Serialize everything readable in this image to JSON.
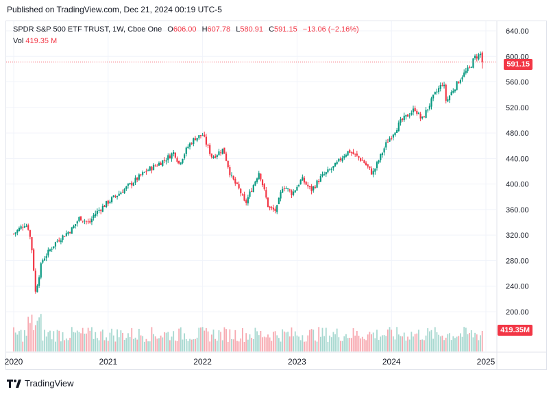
{
  "header": {
    "published_text": "Published on TradingView.com, Dec 21, 2024 00:19 UTC-5"
  },
  "legend": {
    "symbol": "SPDR S&P 500 ETF TRUST, 1W, Cboe One",
    "o_label": "O",
    "o_value": "606.00",
    "h_label": "H",
    "h_value": "607.78",
    "l_label": "L",
    "l_value": "580.91",
    "c_label": "C",
    "c_value": "591.15",
    "change": "−13.06 (−2.16%)",
    "vol_label": "Vol",
    "vol_value": "419.35 M"
  },
  "price_tag": "591.15",
  "volume_tag": "419.35M",
  "brand": {
    "name": "TradingView",
    "icon": "tradingview-logo-icon"
  },
  "colors": {
    "up": "#089981",
    "down": "#f23645",
    "up_vol": "#a7d8d0",
    "down_vol": "#f7a9b0",
    "grid": "#f0f3fa",
    "axis_text": "#131722"
  },
  "chart_data": {
    "type": "candlestick",
    "interval": "1W",
    "symbol": "SPY",
    "x_ticks": [
      "2020",
      "2021",
      "2022",
      "2023",
      "2024",
      "2025"
    ],
    "y_ticks": [
      640,
      600,
      560,
      520,
      480,
      440,
      400,
      360,
      320,
      280,
      240,
      200
    ],
    "ylim": [
      180,
      655
    ],
    "last_close": 591.15,
    "last_volume": "419.35M",
    "grid": true,
    "anchors": [
      [
        2020.0,
        322
      ],
      [
        2020.12,
        338
      ],
      [
        2020.16,
        330
      ],
      [
        2020.2,
        290
      ],
      [
        2020.23,
        230
      ],
      [
        2020.3,
        280
      ],
      [
        2020.45,
        310
      ],
      [
        2020.62,
        330
      ],
      [
        2020.7,
        348
      ],
      [
        2020.8,
        338
      ],
      [
        2020.85,
        352
      ],
      [
        2021.0,
        372
      ],
      [
        2021.2,
        395
      ],
      [
        2021.4,
        420
      ],
      [
        2021.6,
        438
      ],
      [
        2021.7,
        450
      ],
      [
        2021.75,
        432
      ],
      [
        2021.85,
        460
      ],
      [
        2021.92,
        472
      ],
      [
        2022.0,
        477
      ],
      [
        2022.1,
        442
      ],
      [
        2022.22,
        455
      ],
      [
        2022.3,
        412
      ],
      [
        2022.4,
        388
      ],
      [
        2022.45,
        368
      ],
      [
        2022.6,
        420
      ],
      [
        2022.7,
        362
      ],
      [
        2022.78,
        358
      ],
      [
        2022.85,
        398
      ],
      [
        2022.95,
        385
      ],
      [
        2023.05,
        408
      ],
      [
        2023.15,
        390
      ],
      [
        2023.25,
        410
      ],
      [
        2023.4,
        428
      ],
      [
        2023.5,
        446
      ],
      [
        2023.55,
        452
      ],
      [
        2023.7,
        436
      ],
      [
        2023.8,
        416
      ],
      [
        2023.95,
        465
      ],
      [
        2024.1,
        498
      ],
      [
        2024.25,
        518
      ],
      [
        2024.32,
        500
      ],
      [
        2024.45,
        538
      ],
      [
        2024.55,
        560
      ],
      [
        2024.58,
        528
      ],
      [
        2024.62,
        540
      ],
      [
        2024.75,
        570
      ],
      [
        2024.83,
        582
      ],
      [
        2024.88,
        598
      ],
      [
        2024.95,
        604
      ],
      [
        2024.97,
        591
      ]
    ]
  }
}
